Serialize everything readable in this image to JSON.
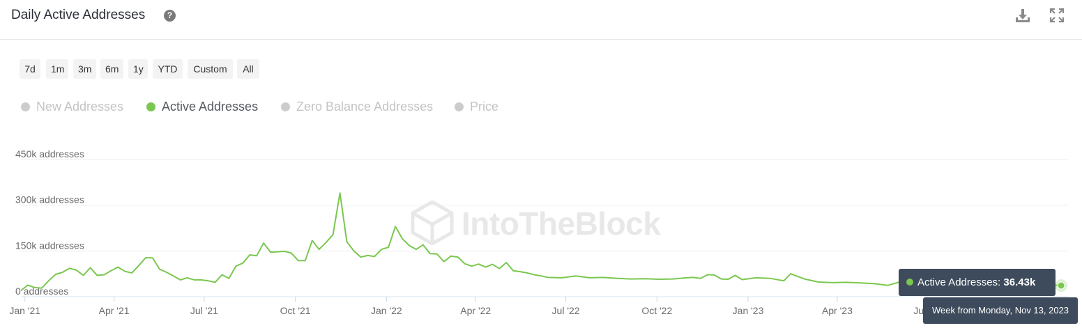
{
  "header": {
    "title": "Daily Active Addresses",
    "help_icon": "question-circle-icon",
    "download_icon": "download-icon",
    "expand_icon": "expand-icon"
  },
  "range_buttons": [
    "7d",
    "1m",
    "3m",
    "6m",
    "1y",
    "YTD",
    "Custom",
    "All"
  ],
  "legend": [
    {
      "label": "New Addresses",
      "color": "#cccccc",
      "active": false
    },
    {
      "label": "Active Addresses",
      "color": "#7ac74f",
      "active": true
    },
    {
      "label": "Zero Balance Addresses",
      "color": "#cccccc",
      "active": false
    },
    {
      "label": "Price",
      "color": "#cccccc",
      "active": false
    }
  ],
  "watermark": "IntoTheBlock",
  "tooltip": {
    "series": "Active Addresses:",
    "value": "36.43k",
    "date": "Week from Monday, Nov 13, 2023",
    "color": "#7ac74f"
  },
  "chart_data": {
    "type": "line",
    "title": "",
    "xlabel": "",
    "ylabel": "",
    "y_tick_labels": [
      "0 addresses",
      "150k addresses",
      "300k addresses",
      "450k addresses"
    ],
    "y_ticks": [
      0,
      150000,
      300000,
      450000
    ],
    "ylim": [
      0,
      450000
    ],
    "x_tick_labels": [
      "Jan '21",
      "Apr '21",
      "Jul '21",
      "Oct '21",
      "Jan '22",
      "Apr '22",
      "Jul '22",
      "Oct '22",
      "Jan '23",
      "Apr '23",
      "Jul '23"
    ],
    "x_ticks": [
      "2021-01-01",
      "2021-04-01",
      "2021-07-01",
      "2021-10-01",
      "2022-01-01",
      "2022-04-01",
      "2022-07-01",
      "2022-10-01",
      "2023-01-01",
      "2023-04-01",
      "2023-07-01"
    ],
    "xlim": [
      "2020-12-28",
      "2023-11-20"
    ],
    "grid": true,
    "color": "#7ac74f",
    "series": [
      {
        "name": "Active Addresses",
        "x": [
          "2020-12-28",
          "2021-01-04",
          "2021-01-11",
          "2021-01-18",
          "2021-01-25",
          "2021-02-01",
          "2021-02-08",
          "2021-02-15",
          "2021-02-22",
          "2021-03-01",
          "2021-03-08",
          "2021-03-15",
          "2021-03-22",
          "2021-03-29",
          "2021-04-05",
          "2021-04-12",
          "2021-04-19",
          "2021-04-26",
          "2021-05-03",
          "2021-05-10",
          "2021-05-17",
          "2021-05-24",
          "2021-05-31",
          "2021-06-07",
          "2021-06-14",
          "2021-06-21",
          "2021-06-28",
          "2021-07-05",
          "2021-07-12",
          "2021-07-19",
          "2021-07-26",
          "2021-08-02",
          "2021-08-09",
          "2021-08-16",
          "2021-08-23",
          "2021-08-30",
          "2021-09-06",
          "2021-09-13",
          "2021-09-20",
          "2021-09-27",
          "2021-10-04",
          "2021-10-11",
          "2021-10-18",
          "2021-10-25",
          "2021-11-01",
          "2021-11-08",
          "2021-11-15",
          "2021-11-22",
          "2021-11-29",
          "2021-12-06",
          "2021-12-13",
          "2021-12-20",
          "2021-12-27",
          "2022-01-03",
          "2022-01-10",
          "2022-01-17",
          "2022-01-24",
          "2022-01-31",
          "2022-02-07",
          "2022-02-14",
          "2022-02-21",
          "2022-02-28",
          "2022-03-07",
          "2022-03-14",
          "2022-03-21",
          "2022-03-28",
          "2022-04-04",
          "2022-04-11",
          "2022-04-18",
          "2022-04-25",
          "2022-05-02",
          "2022-05-09",
          "2022-05-16",
          "2022-05-23",
          "2022-05-30",
          "2022-06-06",
          "2022-06-13",
          "2022-06-27",
          "2022-07-11",
          "2022-07-25",
          "2022-08-08",
          "2022-08-22",
          "2022-09-05",
          "2022-09-19",
          "2022-10-03",
          "2022-10-17",
          "2022-10-31",
          "2022-11-07",
          "2022-11-14",
          "2022-11-21",
          "2022-11-28",
          "2022-12-05",
          "2022-12-12",
          "2022-12-19",
          "2022-12-26",
          "2023-01-09",
          "2023-01-23",
          "2023-02-06",
          "2023-02-13",
          "2023-02-27",
          "2023-03-13",
          "2023-03-27",
          "2023-04-10",
          "2023-04-24",
          "2023-05-01",
          "2023-05-08",
          "2023-05-22",
          "2023-06-05",
          "2023-06-19",
          "2023-06-26",
          "2023-07-03",
          "2023-07-17",
          "2023-07-31",
          "2023-08-14",
          "2023-08-28",
          "2023-09-11",
          "2023-09-25",
          "2023-10-09",
          "2023-10-23",
          "2023-11-06",
          "2023-11-13"
        ],
        "y": [
          20000,
          38000,
          30000,
          28000,
          52000,
          73000,
          80000,
          93000,
          87000,
          70000,
          95000,
          70000,
          72000,
          85000,
          97000,
          83000,
          78000,
          102000,
          128000,
          127000,
          90000,
          80000,
          68000,
          55000,
          62000,
          55000,
          55000,
          52000,
          47000,
          72000,
          60000,
          100000,
          110000,
          137000,
          134000,
          176000,
          146000,
          147000,
          149000,
          143000,
          118000,
          118000,
          184000,
          155000,
          178000,
          203000,
          340000,
          180000,
          150000,
          130000,
          135000,
          132000,
          155000,
          162000,
          230000,
          190000,
          168000,
          155000,
          170000,
          141000,
          140000,
          115000,
          133000,
          130000,
          108000,
          100000,
          107000,
          97000,
          106000,
          92000,
          112000,
          85000,
          82000,
          78000,
          72000,
          68000,
          63000,
          62000,
          68000,
          62000,
          63000,
          60000,
          58000,
          59000,
          57000,
          58000,
          62000,
          63000,
          60000,
          72000,
          71000,
          58000,
          57000,
          70000,
          56000,
          62000,
          60000,
          52000,
          75000,
          58000,
          48000,
          46000,
          47000,
          45000,
          44000,
          43000,
          37000,
          50000,
          53000,
          40000,
          45000,
          48000,
          55000,
          70000,
          62000,
          58000,
          50000,
          40000,
          35000,
          38000,
          36430
        ]
      }
    ]
  }
}
